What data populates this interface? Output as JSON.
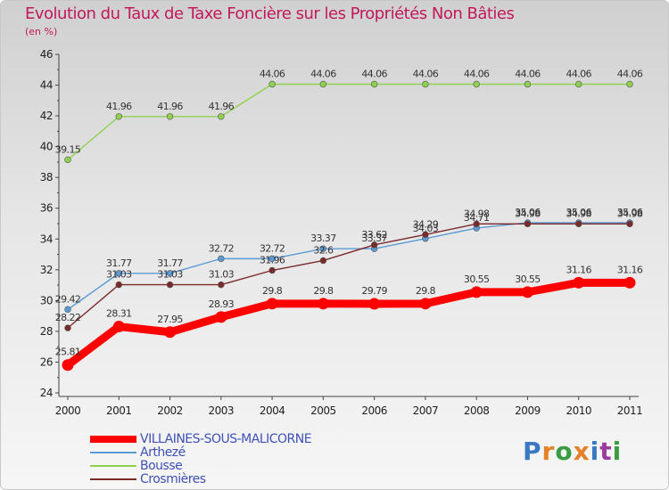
{
  "header": {
    "title": "Evolution du Taux de Taxe Foncière sur les Propriétés Non Bâties",
    "subtitle": "(en %)"
  },
  "logo": {
    "text": "Proxiti",
    "colors": [
      "#3a78c2",
      "#e3822a",
      "#3a9b43",
      "#e3822a",
      "#3a78c2",
      "#9b3aa0",
      "#3a9b43"
    ]
  },
  "chart_data": {
    "type": "line",
    "title": "Evolution du Taux de Taxe Foncière sur les Propriétés Non Bâties",
    "ylabel": "(en %)",
    "xlabel": "",
    "ylim": [
      24,
      46
    ],
    "yticks": [
      24,
      26,
      28,
      30,
      32,
      34,
      36,
      38,
      40,
      42,
      44,
      46
    ],
    "x": [
      "2000",
      "2001",
      "2002",
      "2003",
      "2004",
      "2005",
      "2006",
      "2007",
      "2008",
      "2009",
      "2010",
      "2011"
    ],
    "grid": false,
    "legend_position": "bottom-left",
    "series": [
      {
        "name": "VILLAINES-SOUS-MALICORNE",
        "color": "#ff0000",
        "values": [
          25.81,
          28.31,
          27.95,
          28.93,
          29.8,
          29.8,
          29.79,
          29.8,
          30.55,
          30.55,
          31.16,
          31.16
        ],
        "labels": [
          "25.81",
          "28.31",
          "27.95",
          "28.93",
          "29.8",
          "29.8",
          "29.79",
          "29.8",
          "30.55",
          "30.55",
          "31.16",
          "31.16"
        ]
      },
      {
        "name": "Arthezé",
        "color": "#5b9bd5",
        "values": [
          29.42,
          31.77,
          31.77,
          32.72,
          32.72,
          33.37,
          33.37,
          34.03,
          34.71,
          35.06,
          35.06,
          35.06
        ],
        "labels": [
          "29.42",
          "31.77",
          "31.77",
          "32.72",
          "32.72",
          "33.37",
          "33.37",
          "34.03",
          "34.71",
          "35.06",
          "35.06",
          "35.06"
        ]
      },
      {
        "name": "Bousse",
        "color": "#8fd14f",
        "values": [
          39.15,
          41.96,
          41.96,
          41.96,
          44.06,
          44.06,
          44.06,
          44.06,
          44.06,
          44.06,
          44.06,
          44.06
        ],
        "labels": [
          "39.15",
          "41.96",
          "41.96",
          "41.96",
          "44.06",
          "44.06",
          "44.06",
          "44.06",
          "44.06",
          "44.06",
          "44.06",
          "44.06"
        ]
      },
      {
        "name": "Crosmières",
        "color": "#7b2a2a",
        "values": [
          28.22,
          31.03,
          31.03,
          31.03,
          31.96,
          32.6,
          33.62,
          34.29,
          34.98,
          34.98,
          34.98,
          34.98
        ],
        "labels": [
          "28.22",
          "31.03",
          "31.03",
          "31.03",
          "31.96",
          "32.6",
          "33.62",
          "34.29",
          "34.98",
          "34.98",
          "34.98",
          "34.98"
        ]
      }
    ]
  }
}
